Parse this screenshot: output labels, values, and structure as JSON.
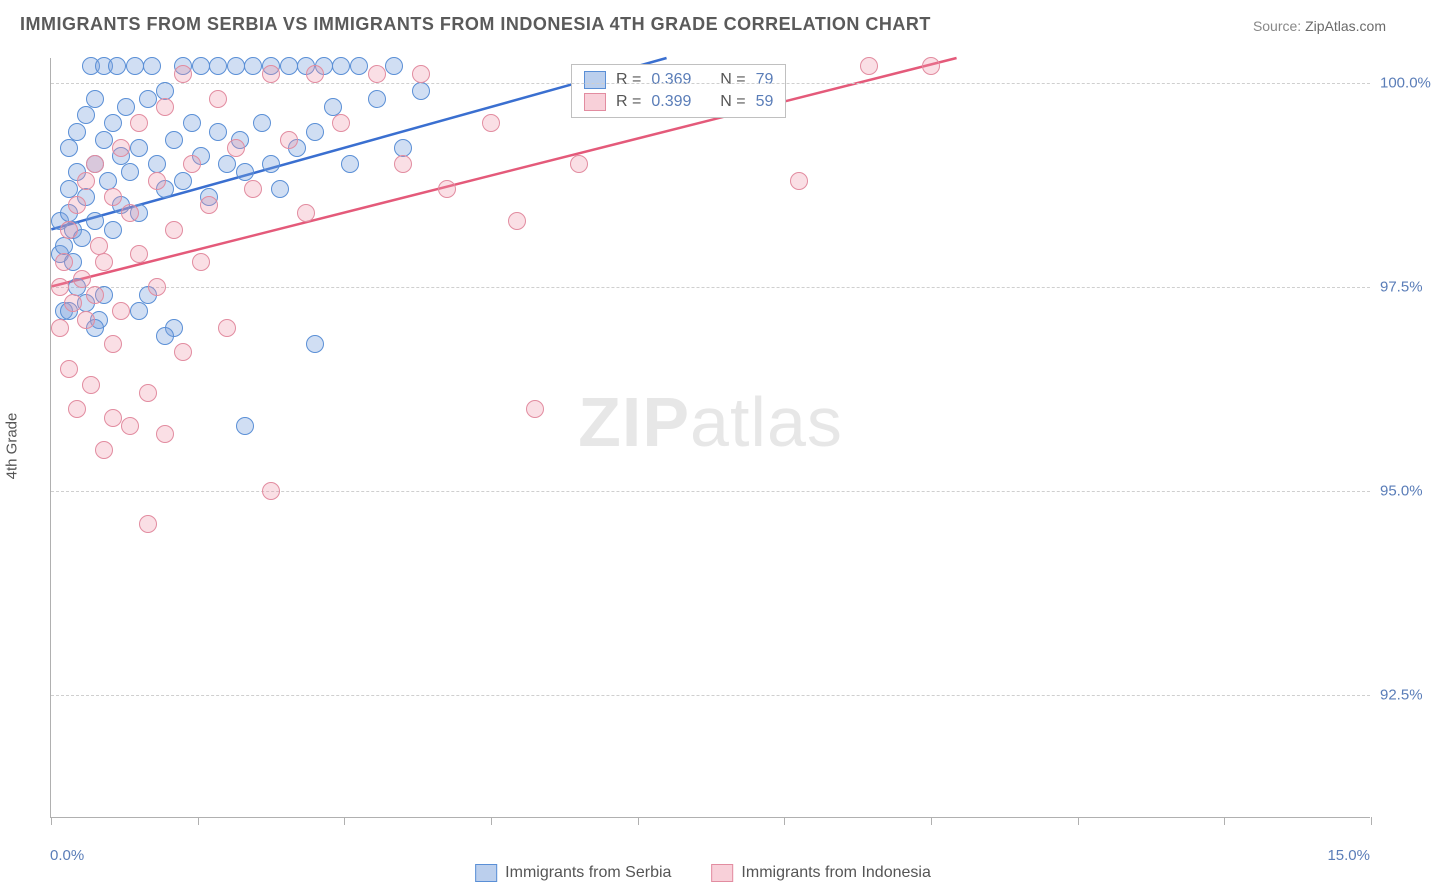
{
  "title": "IMMIGRANTS FROM SERBIA VS IMMIGRANTS FROM INDONESIA 4TH GRADE CORRELATION CHART",
  "source_label": "Source:",
  "source_value": "ZipAtlas.com",
  "watermark_zip": "ZIP",
  "watermark_atlas": "atlas",
  "yaxis_title": "4th Grade",
  "chart": {
    "type": "scatter",
    "xlim": [
      0,
      15
    ],
    "ylim": [
      91,
      100.3
    ],
    "xtick_positions": [
      0,
      1.67,
      3.33,
      5.0,
      6.67,
      8.33,
      10.0,
      11.67,
      13.33,
      15.0
    ],
    "xlabel_min": "0.0%",
    "xlabel_max": "15.0%",
    "ytick_positions": [
      92.5,
      95.0,
      97.5,
      100.0
    ],
    "ytick_labels": [
      "92.5%",
      "95.0%",
      "97.5%",
      "100.0%"
    ],
    "grid_color": "#cfcfcf",
    "background_color": "#ffffff",
    "marker_radius": 9,
    "series": [
      {
        "name": "Immigrants from Serbia",
        "color_fill": "rgba(120,160,220,0.35)",
        "color_stroke": "#5a8fd6",
        "line_color": "#3a6fd0",
        "R": "0.369",
        "N": "79",
        "trend": {
          "x1": 0,
          "y1": 98.2,
          "x2": 7.0,
          "y2": 100.3
        },
        "points": [
          [
            0.1,
            97.9
          ],
          [
            0.1,
            98.3
          ],
          [
            0.15,
            98.0
          ],
          [
            0.15,
            97.2
          ],
          [
            0.2,
            98.4
          ],
          [
            0.2,
            98.7
          ],
          [
            0.2,
            99.2
          ],
          [
            0.25,
            98.2
          ],
          [
            0.25,
            97.8
          ],
          [
            0.3,
            98.9
          ],
          [
            0.3,
            99.4
          ],
          [
            0.3,
            97.5
          ],
          [
            0.35,
            98.1
          ],
          [
            0.4,
            99.6
          ],
          [
            0.4,
            98.6
          ],
          [
            0.4,
            97.3
          ],
          [
            0.45,
            100.2
          ],
          [
            0.5,
            99.0
          ],
          [
            0.5,
            98.3
          ],
          [
            0.5,
            99.8
          ],
          [
            0.55,
            97.1
          ],
          [
            0.6,
            99.3
          ],
          [
            0.6,
            100.2
          ],
          [
            0.65,
            98.8
          ],
          [
            0.7,
            99.5
          ],
          [
            0.7,
            98.2
          ],
          [
            0.75,
            100.2
          ],
          [
            0.8,
            99.1
          ],
          [
            0.8,
            98.5
          ],
          [
            0.85,
            99.7
          ],
          [
            0.9,
            98.9
          ],
          [
            0.95,
            100.2
          ],
          [
            1.0,
            99.2
          ],
          [
            1.0,
            98.4
          ],
          [
            1.1,
            99.8
          ],
          [
            1.1,
            97.4
          ],
          [
            1.15,
            100.2
          ],
          [
            1.2,
            99.0
          ],
          [
            1.3,
            98.7
          ],
          [
            1.3,
            99.9
          ],
          [
            1.4,
            99.3
          ],
          [
            1.4,
            97.0
          ],
          [
            1.5,
            100.2
          ],
          [
            1.5,
            98.8
          ],
          [
            1.6,
            99.5
          ],
          [
            1.7,
            100.2
          ],
          [
            1.7,
            99.1
          ],
          [
            1.8,
            98.6
          ],
          [
            1.9,
            100.2
          ],
          [
            1.9,
            99.4
          ],
          [
            2.0,
            99.0
          ],
          [
            2.1,
            100.2
          ],
          [
            2.15,
            99.3
          ],
          [
            2.2,
            98.9
          ],
          [
            2.3,
            100.2
          ],
          [
            2.4,
            99.5
          ],
          [
            2.5,
            100.2
          ],
          [
            2.5,
            99.0
          ],
          [
            2.6,
            98.7
          ],
          [
            2.7,
            100.2
          ],
          [
            2.8,
            99.2
          ],
          [
            2.9,
            100.2
          ],
          [
            3.0,
            99.4
          ],
          [
            3.0,
            96.8
          ],
          [
            3.1,
            100.2
          ],
          [
            3.2,
            99.7
          ],
          [
            3.3,
            100.2
          ],
          [
            3.4,
            99.0
          ],
          [
            3.5,
            100.2
          ],
          [
            3.7,
            99.8
          ],
          [
            3.9,
            100.2
          ],
          [
            4.0,
            99.2
          ],
          [
            4.2,
            99.9
          ],
          [
            2.2,
            95.8
          ],
          [
            1.3,
            96.9
          ],
          [
            0.5,
            97.0
          ],
          [
            0.2,
            97.2
          ],
          [
            0.6,
            97.4
          ],
          [
            1.0,
            97.2
          ]
        ]
      },
      {
        "name": "Immigrants from Indonesia",
        "color_fill": "rgba(240,150,170,0.30)",
        "color_stroke": "#e28ca0",
        "line_color": "#e45a7a",
        "R": "0.399",
        "N": "59",
        "trend": {
          "x1": 0,
          "y1": 97.5,
          "x2": 10.3,
          "y2": 100.3
        },
        "points": [
          [
            0.1,
            97.5
          ],
          [
            0.1,
            97.0
          ],
          [
            0.15,
            97.8
          ],
          [
            0.2,
            96.5
          ],
          [
            0.2,
            98.2
          ],
          [
            0.25,
            97.3
          ],
          [
            0.3,
            98.5
          ],
          [
            0.3,
            96.0
          ],
          [
            0.35,
            97.6
          ],
          [
            0.4,
            98.8
          ],
          [
            0.4,
            97.1
          ],
          [
            0.45,
            96.3
          ],
          [
            0.5,
            99.0
          ],
          [
            0.5,
            97.4
          ],
          [
            0.55,
            98.0
          ],
          [
            0.6,
            95.5
          ],
          [
            0.6,
            97.8
          ],
          [
            0.7,
            98.6
          ],
          [
            0.7,
            96.8
          ],
          [
            0.8,
            99.2
          ],
          [
            0.8,
            97.2
          ],
          [
            0.9,
            98.4
          ],
          [
            0.9,
            95.8
          ],
          [
            1.0,
            97.9
          ],
          [
            1.0,
            99.5
          ],
          [
            1.1,
            96.2
          ],
          [
            1.2,
            98.8
          ],
          [
            1.2,
            97.5
          ],
          [
            1.3,
            99.7
          ],
          [
            1.3,
            95.7
          ],
          [
            1.4,
            98.2
          ],
          [
            1.5,
            100.1
          ],
          [
            1.5,
            96.7
          ],
          [
            1.6,
            99.0
          ],
          [
            1.7,
            97.8
          ],
          [
            1.8,
            98.5
          ],
          [
            1.9,
            99.8
          ],
          [
            2.0,
            97.0
          ],
          [
            2.1,
            99.2
          ],
          [
            2.3,
            98.7
          ],
          [
            2.5,
            100.1
          ],
          [
            2.5,
            95.0
          ],
          [
            2.7,
            99.3
          ],
          [
            2.9,
            98.4
          ],
          [
            3.0,
            100.1
          ],
          [
            3.3,
            99.5
          ],
          [
            3.7,
            100.1
          ],
          [
            4.0,
            99.0
          ],
          [
            4.2,
            100.1
          ],
          [
            4.5,
            98.7
          ],
          [
            5.0,
            99.5
          ],
          [
            5.3,
            98.3
          ],
          [
            5.5,
            96.0
          ],
          [
            6.0,
            99.0
          ],
          [
            8.5,
            98.8
          ],
          [
            9.3,
            100.2
          ],
          [
            10.0,
            100.2
          ],
          [
            1.1,
            94.6
          ],
          [
            0.7,
            95.9
          ]
        ]
      }
    ],
    "legend_labels": {
      "R_prefix": "R =",
      "N_prefix": "N ="
    }
  }
}
